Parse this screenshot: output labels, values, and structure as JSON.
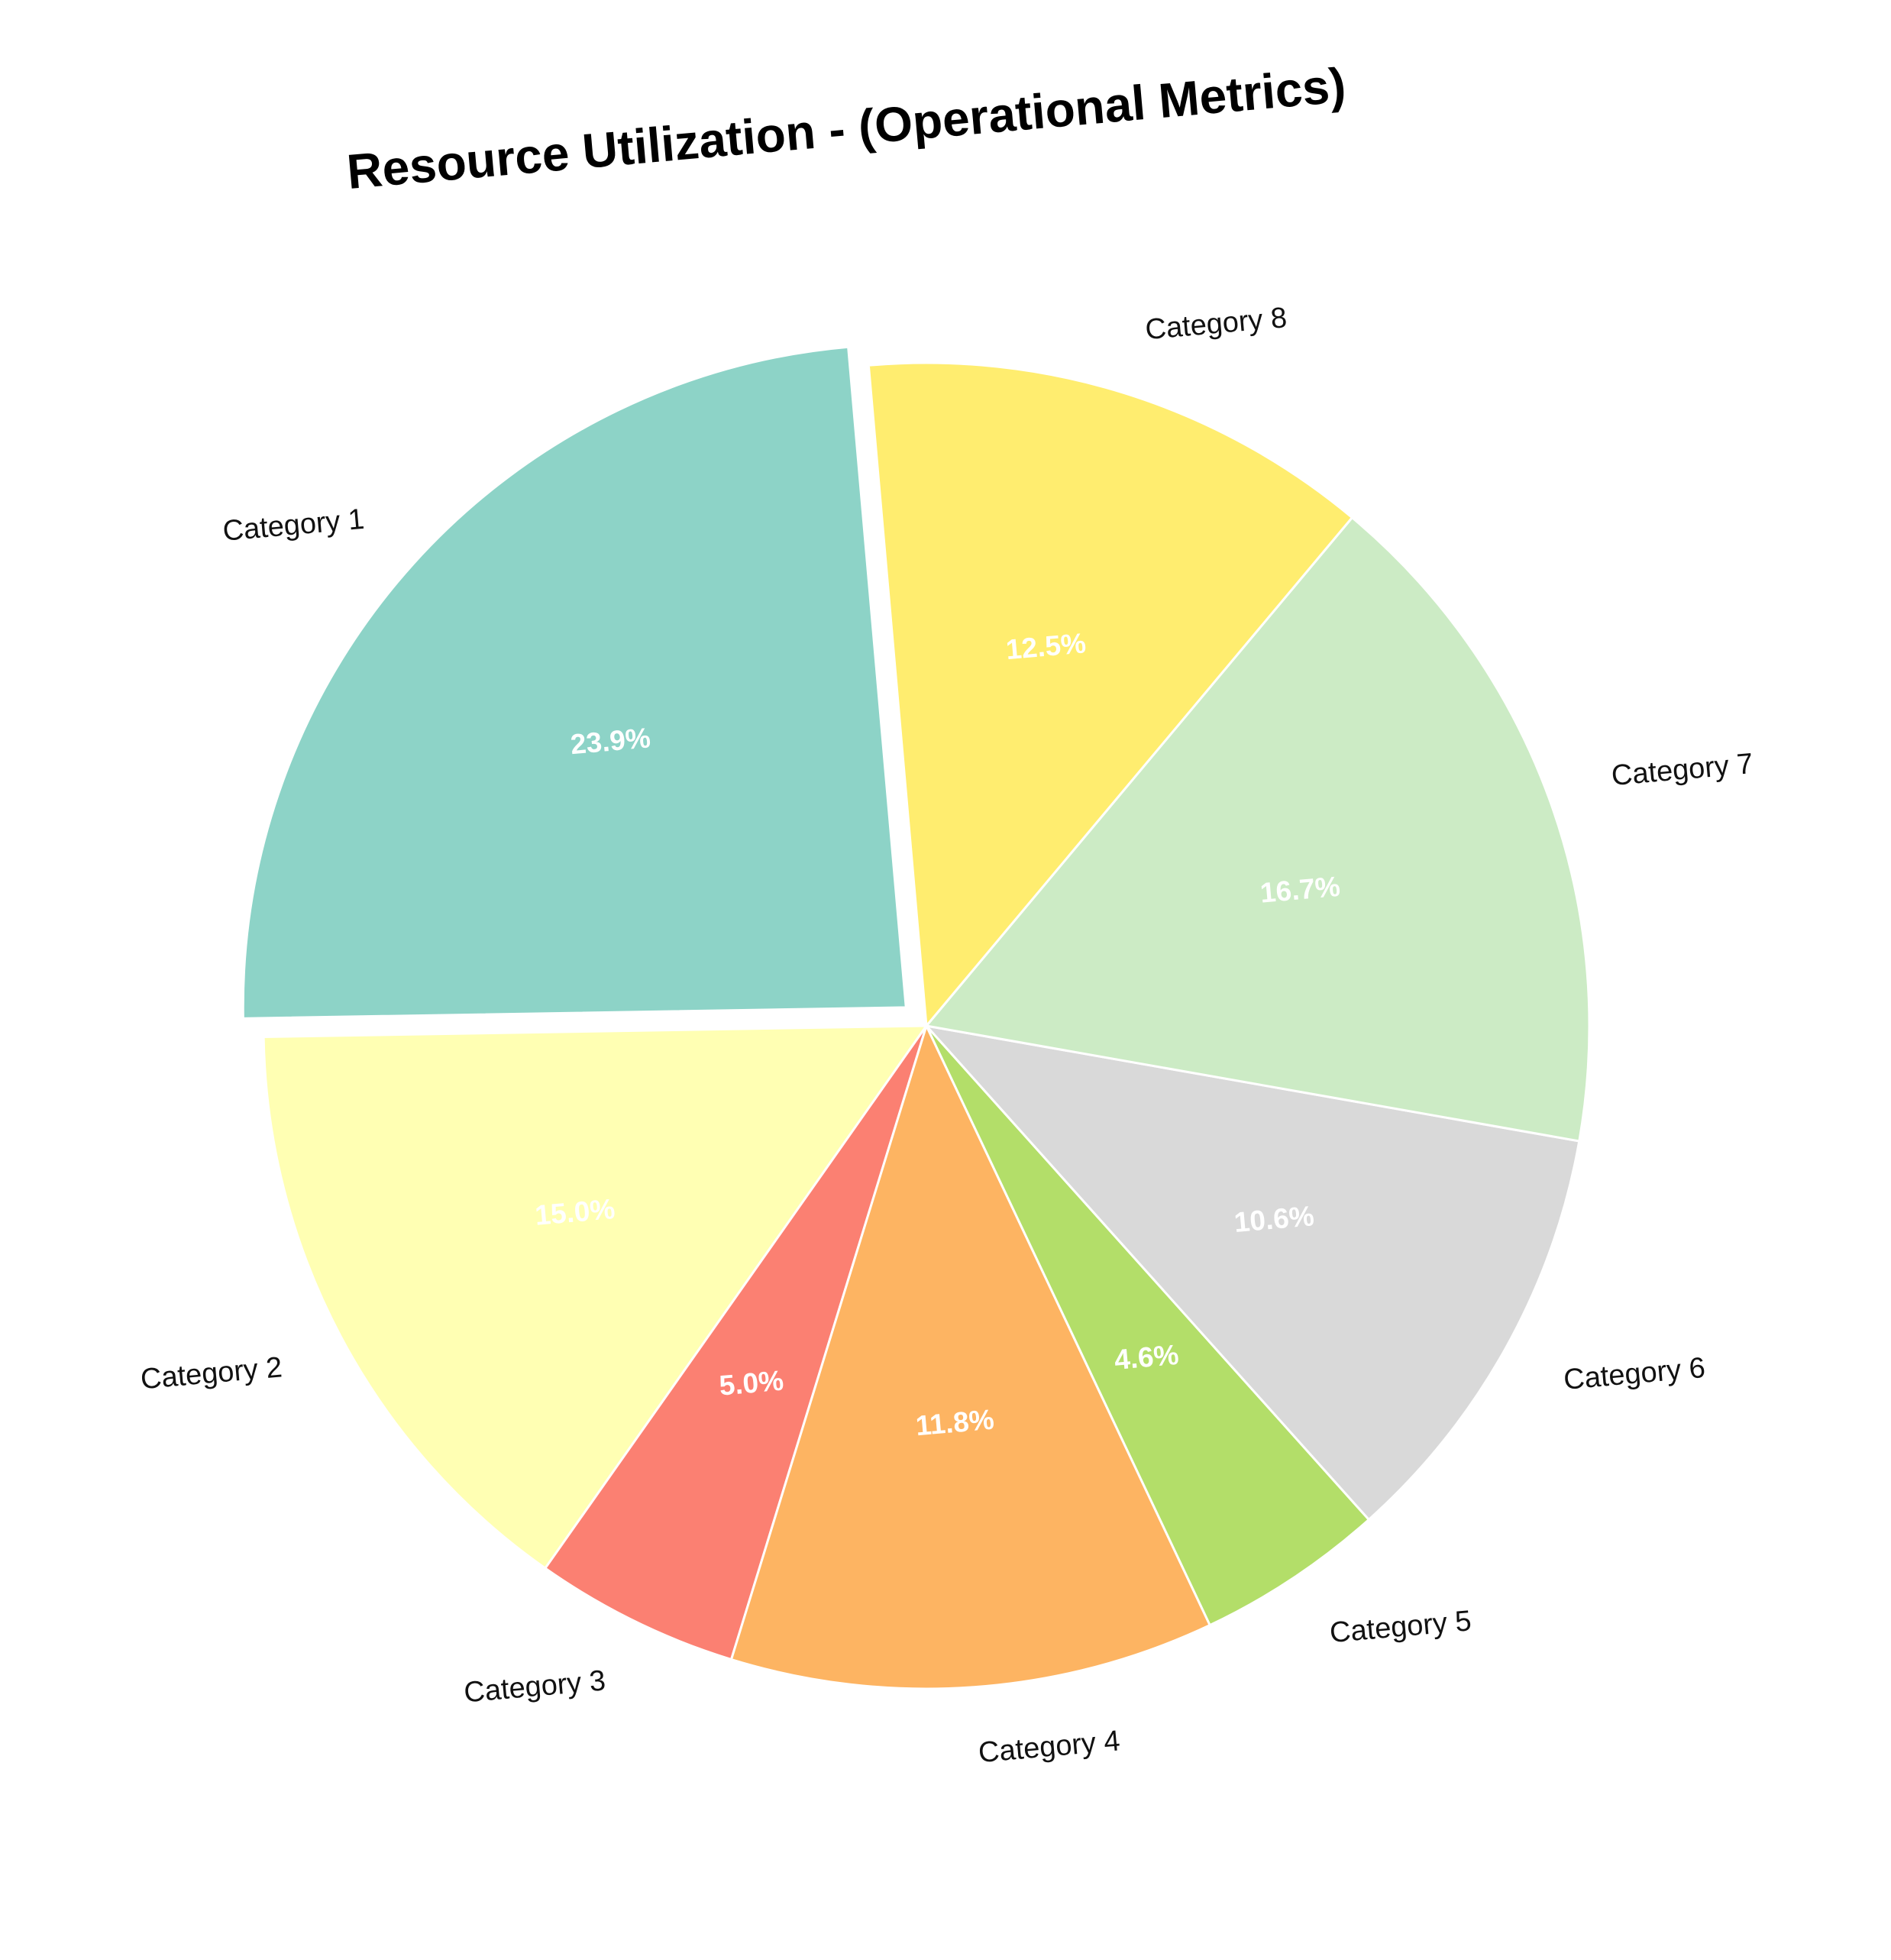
{
  "chart_data": {
    "type": "pie",
    "title": "Resource Utilization - (Operational Metrics)",
    "categories": [
      "Category 1",
      "Category 2",
      "Category 3",
      "Category 4",
      "Category 5",
      "Category 6",
      "Category 7",
      "Category 8"
    ],
    "values": [
      23.9,
      15.0,
      5.0,
      11.8,
      4.6,
      10.6,
      16.7,
      12.5
    ],
    "value_labels": [
      "23.9%",
      "15.0%",
      "5.0%",
      "11.8%",
      "4.6%",
      "10.6%",
      "16.7%",
      "12.5%"
    ],
    "colors": [
      "#8dd3c7",
      "#ffffb3",
      "#fb8072",
      "#fdb462",
      "#b3de69",
      "#d9d9d9",
      "#ccebc5",
      "#ffed6f"
    ],
    "exploded": [
      "Category 1"
    ],
    "start_angle_deg": 95,
    "direction": "counterclockwise",
    "legend": "none"
  }
}
